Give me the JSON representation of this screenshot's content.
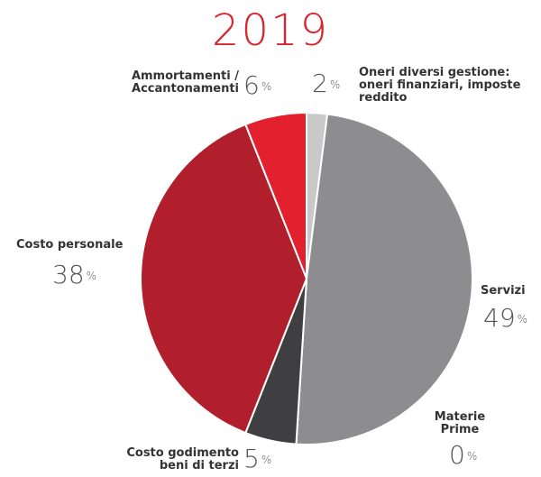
{
  "chart_data": {
    "type": "pie",
    "title": "2019",
    "unit": "%",
    "categories": [
      "Oneri diversi gestione: oneri finanziari, imposte reddito",
      "Servizi",
      "Materie Prime",
      "Costo godimento beni di terzi",
      "Costo personale",
      "Ammortamenti / Accantonamenti"
    ],
    "values": [
      2,
      49,
      0,
      5,
      38,
      6
    ],
    "colors": [
      "#c9c9ca",
      "#8d8d8f",
      "#6e6e70",
      "#3f3f41",
      "#b21f2c",
      "#e2202e"
    ]
  }
}
